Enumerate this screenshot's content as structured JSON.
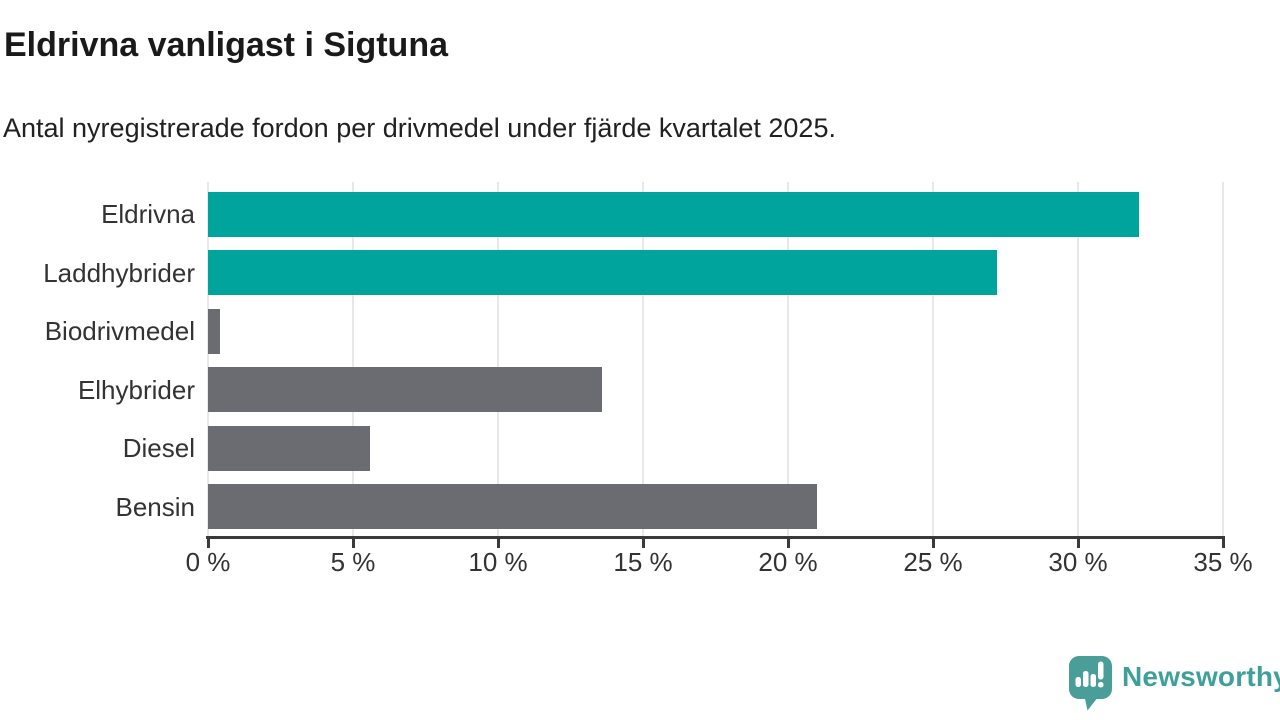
{
  "header": {
    "title": "Eldrivna vanligast i Sigtuna",
    "subtitle": "Antal nyregistrerade fordon per drivmedel under fjärde kvartalet 2025."
  },
  "chart_data": {
    "type": "bar",
    "orientation": "horizontal",
    "title": "Eldrivna vanligast i Sigtuna",
    "subtitle": "Antal nyregistrerade fordon per drivmedel under fjärde kvartalet 2025.",
    "categories": [
      "Eldrivna",
      "Laddhybrider",
      "Biodrivmedel",
      "Elhybrider",
      "Diesel",
      "Bensin"
    ],
    "values": [
      32.1,
      27.2,
      0.4,
      13.6,
      5.6,
      21.0
    ],
    "unit": "%",
    "bar_colors": [
      "#00a49c",
      "#00a49c",
      "#6b6c71",
      "#6b6c71",
      "#6b6c71",
      "#6b6c71"
    ],
    "highlight_color": "#00a49c",
    "default_color": "#6b6c71",
    "xlim": [
      0,
      35
    ],
    "xticks": [
      0,
      5,
      10,
      15,
      20,
      25,
      30,
      35
    ],
    "xtick_labels": [
      "0 %",
      "5 %",
      "10 %",
      "15 %",
      "20 %",
      "25 %",
      "30 %",
      "35 %"
    ],
    "grid": true,
    "gridline_color": "#e8e8e8",
    "axis_color": "#3a3a3a",
    "label_color": "#333333",
    "legend": "none"
  },
  "footer": {
    "brand": "Newsworthy",
    "logo_icon": "newsworthy-speech-bubble-chart-icon",
    "brand_color": "#3fa09b",
    "icon_color": "#4a9e9a"
  }
}
